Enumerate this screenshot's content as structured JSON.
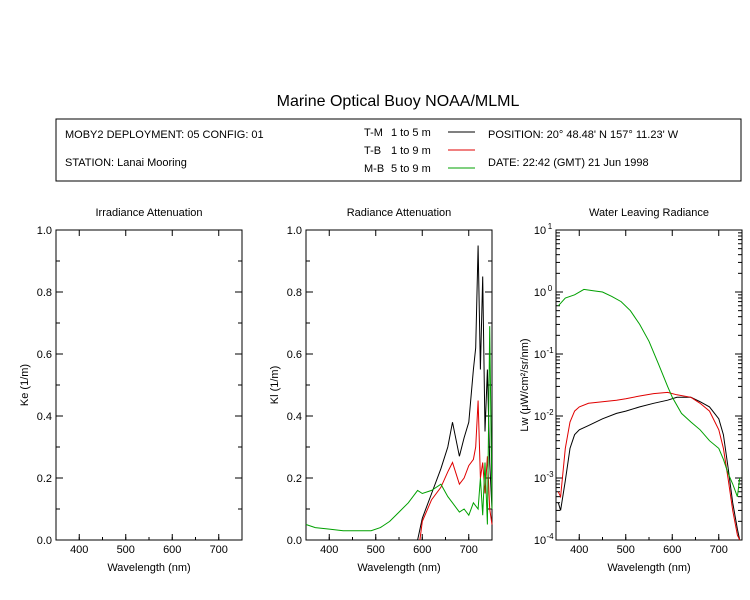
{
  "title": "Marine Optical Buoy NOAA/MLML",
  "header": {
    "deployment": "MOBY2 DEPLOYMENT: 05 CONFIG: 01",
    "station": "STATION: Lanai Mooring",
    "position": "POSITION: 20° 48.48' N   157° 11.23' W",
    "date": "DATE: 22:42 (GMT) 21 Jun 1998"
  },
  "legend": [
    {
      "code": "T-M",
      "range": "1 to 5  m",
      "color": "#000000"
    },
    {
      "code": "T-B",
      "range": "1 to 9  m",
      "color": "#e00000"
    },
    {
      "code": "M-B",
      "range": "5 to 9  m",
      "color": "#00a000"
    }
  ],
  "chart_data": [
    {
      "type": "line",
      "title": "Irradiance Attenuation",
      "xlabel": "Wavelength (nm)",
      "ylabel": "Ke  (1/m)",
      "xlim": [
        350,
        750
      ],
      "ylim": [
        0,
        1.0
      ],
      "xticks": [
        "400",
        "500",
        "600",
        "700"
      ],
      "yticks": [
        "0.0",
        "0.2",
        "0.4",
        "0.6",
        "0.8",
        "1.0"
      ],
      "series": []
    },
    {
      "type": "line",
      "title": "Radiance Attenuation",
      "xlabel": "Wavelength (nm)",
      "ylabel": "Kl  (1/m)",
      "xlim": [
        350,
        750
      ],
      "ylim": [
        0,
        1.0
      ],
      "xticks": [
        "400",
        "500",
        "600",
        "700"
      ],
      "yticks": [
        "0.0",
        "0.2",
        "0.4",
        "0.6",
        "0.8",
        "1.0"
      ],
      "series": [
        {
          "name": "T-M",
          "color": "#000000",
          "x": [
            590,
            600,
            620,
            640,
            655,
            665,
            680,
            690,
            700,
            710,
            715,
            720,
            725,
            730,
            735,
            740,
            745,
            750
          ],
          "y": [
            0.0,
            0.07,
            0.15,
            0.23,
            0.3,
            0.38,
            0.27,
            0.33,
            0.38,
            0.55,
            0.62,
            0.95,
            0.55,
            0.85,
            0.35,
            0.55,
            0.25,
            0.1
          ]
        },
        {
          "name": "T-B",
          "color": "#e00000",
          "x": [
            595,
            600,
            620,
            640,
            655,
            665,
            680,
            690,
            700,
            710,
            715,
            720,
            725,
            730,
            735,
            740,
            745,
            750
          ],
          "y": [
            0.0,
            0.06,
            0.13,
            0.17,
            0.22,
            0.25,
            0.18,
            0.2,
            0.24,
            0.26,
            0.3,
            0.45,
            0.2,
            0.25,
            0.15,
            0.27,
            0.1,
            0.05
          ]
        },
        {
          "name": "M-B",
          "color": "#00a000",
          "x": [
            350,
            370,
            400,
            430,
            460,
            490,
            510,
            530,
            550,
            570,
            590,
            600,
            620,
            640,
            655,
            665,
            680,
            690,
            700,
            710,
            720,
            725,
            730,
            735,
            740,
            745,
            750
          ],
          "y": [
            0.05,
            0.04,
            0.035,
            0.03,
            0.03,
            0.03,
            0.04,
            0.06,
            0.09,
            0.12,
            0.16,
            0.15,
            0.16,
            0.18,
            0.14,
            0.12,
            0.09,
            0.1,
            0.08,
            0.12,
            0.1,
            0.2,
            0.08,
            0.25,
            0.05,
            0.69,
            0.1
          ]
        }
      ]
    },
    {
      "type": "line",
      "title": "Water Leaving Radiance",
      "xlabel": "Wavelength (nm)",
      "ylabel": "Lw  (μW/cm²/sr/nm)",
      "xlim": [
        350,
        750
      ],
      "ylim": [
        0.0001,
        10
      ],
      "yscale": "log",
      "xticks": [
        "400",
        "500",
        "600",
        "700"
      ],
      "yticks": [
        {
          "base": "10",
          "exp": "1"
        },
        {
          "base": "10",
          "exp": "0"
        },
        {
          "base": "10",
          "exp": "-1"
        },
        {
          "base": "10",
          "exp": "-2"
        },
        {
          "base": "10",
          "exp": "-3"
        },
        {
          "base": "10",
          "exp": "-4"
        }
      ],
      "series": [
        {
          "name": "T-M",
          "color": "#000000",
          "x": [
            355,
            360,
            370,
            380,
            390,
            400,
            420,
            450,
            480,
            500,
            530,
            560,
            590,
            610,
            640,
            660,
            680,
            700,
            710,
            720,
            730,
            740,
            745
          ],
          "y": [
            0.0004,
            0.0003,
            0.0009,
            0.003,
            0.005,
            0.006,
            0.007,
            0.009,
            0.011,
            0.012,
            0.014,
            0.016,
            0.018,
            0.02,
            0.02,
            0.017,
            0.014,
            0.009,
            0.005,
            0.0015,
            0.0004,
            0.00015,
            0.0001
          ]
        },
        {
          "name": "T-B",
          "color": "#e00000",
          "x": [
            355,
            360,
            370,
            380,
            390,
            400,
            420,
            450,
            480,
            500,
            530,
            560,
            590,
            610,
            640,
            660,
            680,
            700,
            710,
            720,
            730,
            740,
            745
          ],
          "y": [
            0.0006,
            0.0005,
            0.003,
            0.008,
            0.012,
            0.014,
            0.016,
            0.017,
            0.018,
            0.019,
            0.021,
            0.023,
            0.024,
            0.022,
            0.02,
            0.016,
            0.012,
            0.006,
            0.003,
            0.001,
            0.0003,
            0.00012,
            0.0001
          ]
        },
        {
          "name": "M-B",
          "color": "#00a000",
          "x": [
            355,
            370,
            390,
            410,
            430,
            450,
            470,
            490,
            510,
            530,
            550,
            570,
            590,
            600,
            620,
            640,
            660,
            680,
            700,
            710,
            720,
            730,
            740,
            745
          ],
          "y": [
            0.6,
            0.8,
            0.9,
            1.1,
            1.05,
            1.0,
            0.85,
            0.7,
            0.5,
            0.3,
            0.16,
            0.07,
            0.03,
            0.02,
            0.011,
            0.008,
            0.006,
            0.004,
            0.003,
            0.002,
            0.0012,
            0.0008,
            0.0005,
            0.001
          ]
        }
      ]
    }
  ]
}
